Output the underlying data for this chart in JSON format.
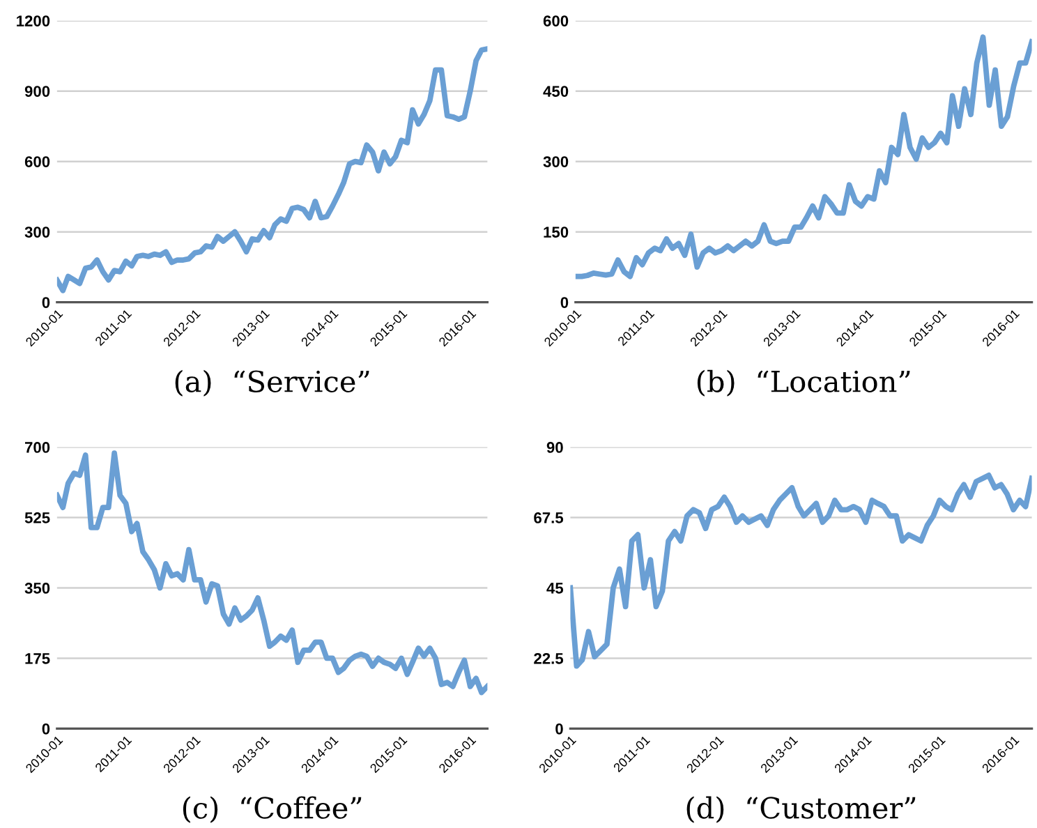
{
  "chart_data": [
    {
      "type": "line",
      "title": "(a)  “Service”",
      "color": "#6a9fd4",
      "grid": "y",
      "marker": "none",
      "line_style": "solid",
      "x": [
        "2010-01",
        "2010-02",
        "2010-03",
        "2010-04",
        "2010-05",
        "2010-06",
        "2010-07",
        "2010-08",
        "2010-09",
        "2010-10",
        "2010-11",
        "2010-12",
        "2011-01",
        "2011-02",
        "2011-03",
        "2011-04",
        "2011-05",
        "2011-06",
        "2011-07",
        "2011-08",
        "2011-09",
        "2011-10",
        "2011-11",
        "2011-12",
        "2012-01",
        "2012-02",
        "2012-03",
        "2012-04",
        "2012-05",
        "2012-06",
        "2012-07",
        "2012-08",
        "2012-09",
        "2012-10",
        "2012-11",
        "2012-12",
        "2013-01",
        "2013-02",
        "2013-03",
        "2013-04",
        "2013-05",
        "2013-06",
        "2013-07",
        "2013-08",
        "2013-09",
        "2013-10",
        "2013-11",
        "2013-12",
        "2014-01",
        "2014-02",
        "2014-03",
        "2014-04",
        "2014-05",
        "2014-06",
        "2014-07",
        "2014-08",
        "2014-09",
        "2014-10",
        "2014-11",
        "2014-12",
        "2015-01",
        "2015-02",
        "2015-03",
        "2015-04",
        "2015-05",
        "2015-06",
        "2015-07",
        "2015-08",
        "2015-09",
        "2015-10",
        "2015-11",
        "2015-12",
        "2016-01",
        "2016-02",
        "2016-03",
        "2016-04"
      ],
      "values": [
        94,
        50,
        110,
        95,
        80,
        145,
        150,
        180,
        130,
        95,
        135,
        130,
        175,
        155,
        195,
        200,
        195,
        205,
        200,
        215,
        170,
        180,
        180,
        185,
        210,
        215,
        240,
        235,
        280,
        260,
        280,
        300,
        260,
        215,
        270,
        265,
        305,
        275,
        330,
        355,
        345,
        400,
        405,
        395,
        360,
        430,
        360,
        365,
        410,
        460,
        510,
        590,
        600,
        595,
        670,
        640,
        560,
        640,
        590,
        620,
        690,
        680,
        820,
        760,
        800,
        860,
        990,
        990,
        795,
        790,
        780,
        790,
        900,
        1030,
        1075,
        1080
      ],
      "ylim": [
        0,
        1200
      ],
      "yticks": [
        0,
        300,
        600,
        900,
        1200
      ],
      "xlim": [
        "2010-01",
        "2016-04"
      ],
      "xticks": [
        "2010-01",
        "2011-01",
        "2012-01",
        "2013-01",
        "2014-01",
        "2015-01",
        "2016-01"
      ]
    },
    {
      "type": "line",
      "title": "(b)  “Location”",
      "color": "#6a9fd4",
      "grid": "y",
      "marker": "none",
      "line_style": "solid",
      "x": [
        "2010-01",
        "2010-02",
        "2010-03",
        "2010-04",
        "2010-05",
        "2010-06",
        "2010-07",
        "2010-08",
        "2010-09",
        "2010-10",
        "2010-11",
        "2010-12",
        "2011-01",
        "2011-02",
        "2011-03",
        "2011-04",
        "2011-05",
        "2011-06",
        "2011-07",
        "2011-08",
        "2011-09",
        "2011-10",
        "2011-11",
        "2011-12",
        "2012-01",
        "2012-02",
        "2012-03",
        "2012-04",
        "2012-05",
        "2012-06",
        "2012-07",
        "2012-08",
        "2012-09",
        "2012-10",
        "2012-11",
        "2012-12",
        "2013-01",
        "2013-02",
        "2013-03",
        "2013-04",
        "2013-05",
        "2013-06",
        "2013-07",
        "2013-08",
        "2013-09",
        "2013-10",
        "2013-11",
        "2013-12",
        "2014-01",
        "2014-02",
        "2014-03",
        "2014-04",
        "2014-05",
        "2014-06",
        "2014-07",
        "2014-08",
        "2014-09",
        "2014-10",
        "2014-11",
        "2014-12",
        "2015-01",
        "2015-02",
        "2015-03",
        "2015-04",
        "2015-05",
        "2015-06",
        "2015-07",
        "2015-08",
        "2015-09",
        "2015-10",
        "2015-11",
        "2015-12",
        "2016-01",
        "2016-02",
        "2016-03",
        "2016-04"
      ],
      "values": [
        55,
        55,
        57,
        62,
        60,
        58,
        60,
        90,
        65,
        55,
        95,
        80,
        105,
        115,
        110,
        135,
        115,
        125,
        100,
        145,
        75,
        105,
        115,
        105,
        110,
        120,
        110,
        120,
        130,
        120,
        130,
        165,
        130,
        125,
        130,
        130,
        160,
        160,
        180,
        205,
        180,
        225,
        210,
        190,
        190,
        250,
        215,
        205,
        225,
        220,
        280,
        255,
        330,
        315,
        400,
        330,
        305,
        350,
        330,
        340,
        360,
        340,
        440,
        375,
        455,
        400,
        510,
        565,
        420,
        495,
        375,
        395,
        460,
        510,
        510,
        555
      ],
      "ylim": [
        0,
        600
      ],
      "yticks": [
        0,
        150,
        300,
        450,
        600
      ],
      "xlim": [
        "2010-01",
        "2016-04"
      ],
      "xticks": [
        "2010-01",
        "2011-01",
        "2012-01",
        "2013-01",
        "2014-01",
        "2015-01",
        "2016-01"
      ]
    },
    {
      "type": "line",
      "title": "(c)  “Coffee”",
      "color": "#6a9fd4",
      "grid": "y",
      "marker": "none",
      "line_style": "solid",
      "x": [
        "2010-01",
        "2010-02",
        "2010-03",
        "2010-04",
        "2010-05",
        "2010-06",
        "2010-07",
        "2010-08",
        "2010-09",
        "2010-10",
        "2010-11",
        "2010-12",
        "2011-01",
        "2011-02",
        "2011-03",
        "2011-04",
        "2011-05",
        "2011-06",
        "2011-07",
        "2011-08",
        "2011-09",
        "2011-10",
        "2011-11",
        "2011-12",
        "2012-01",
        "2012-02",
        "2012-03",
        "2012-04",
        "2012-05",
        "2012-06",
        "2012-07",
        "2012-08",
        "2012-09",
        "2012-10",
        "2012-11",
        "2012-12",
        "2013-01",
        "2013-02",
        "2013-03",
        "2013-04",
        "2013-05",
        "2013-06",
        "2013-07",
        "2013-08",
        "2013-09",
        "2013-10",
        "2013-11",
        "2013-12",
        "2014-01",
        "2014-02",
        "2014-03",
        "2014-04",
        "2014-05",
        "2014-06",
        "2014-07",
        "2014-08",
        "2014-09",
        "2014-10",
        "2014-11",
        "2014-12",
        "2015-01",
        "2015-02",
        "2015-03",
        "2015-04",
        "2015-05",
        "2015-06",
        "2015-07",
        "2015-08",
        "2015-09",
        "2015-10",
        "2015-11",
        "2015-12",
        "2016-01",
        "2016-02",
        "2016-03",
        "2016-04"
      ],
      "values": [
        580,
        550,
        610,
        635,
        630,
        680,
        500,
        500,
        550,
        550,
        685,
        580,
        560,
        490,
        510,
        440,
        420,
        395,
        350,
        410,
        380,
        385,
        370,
        445,
        370,
        370,
        315,
        360,
        355,
        285,
        260,
        300,
        270,
        280,
        295,
        325,
        270,
        205,
        215,
        230,
        220,
        245,
        165,
        195,
        195,
        215,
        215,
        175,
        175,
        140,
        150,
        170,
        180,
        185,
        180,
        155,
        175,
        165,
        160,
        150,
        175,
        135,
        165,
        200,
        180,
        200,
        175,
        110,
        115,
        105,
        140,
        170,
        105,
        125,
        90,
        105
      ],
      "ylim": [
        0,
        700
      ],
      "yticks": [
        0,
        175,
        350,
        525,
        700
      ],
      "xlim": [
        "2010-01",
        "2016-04"
      ],
      "xticks": [
        "2010-01",
        "2011-01",
        "2012-01",
        "2013-01",
        "2014-01",
        "2015-01",
        "2016-01"
      ]
    },
    {
      "type": "line",
      "title": "(d)  “Customer”",
      "color": "#6a9fd4",
      "grid": "y",
      "marker": "none",
      "line_style": "solid",
      "x": [
        "2010-01",
        "2010-02",
        "2010-03",
        "2010-04",
        "2010-05",
        "2010-06",
        "2010-07",
        "2010-08",
        "2010-09",
        "2010-10",
        "2010-11",
        "2010-12",
        "2011-01",
        "2011-02",
        "2011-03",
        "2011-04",
        "2011-05",
        "2011-06",
        "2011-07",
        "2011-08",
        "2011-09",
        "2011-10",
        "2011-11",
        "2011-12",
        "2012-01",
        "2012-02",
        "2012-03",
        "2012-04",
        "2012-05",
        "2012-06",
        "2012-07",
        "2012-08",
        "2012-09",
        "2012-10",
        "2012-11",
        "2012-12",
        "2013-01",
        "2013-02",
        "2013-03",
        "2013-04",
        "2013-05",
        "2013-06",
        "2013-07",
        "2013-08",
        "2013-09",
        "2013-10",
        "2013-11",
        "2013-12",
        "2014-01",
        "2014-02",
        "2014-03",
        "2014-04",
        "2014-05",
        "2014-06",
        "2014-07",
        "2014-08",
        "2014-09",
        "2014-10",
        "2014-11",
        "2014-12",
        "2015-01",
        "2015-02",
        "2015-03",
        "2015-04",
        "2015-05",
        "2015-06",
        "2015-07",
        "2015-08",
        "2015-09",
        "2015-10",
        "2015-11",
        "2015-12",
        "2016-01",
        "2016-02",
        "2016-03",
        "2016-04"
      ],
      "values": [
        45,
        20,
        22,
        31,
        23,
        25,
        27,
        45,
        51,
        39,
        60,
        62,
        45,
        54,
        39,
        44,
        60,
        63,
        60,
        68,
        70,
        69,
        64,
        70,
        71,
        74,
        71,
        66,
        68,
        66,
        67,
        68,
        65,
        70,
        73,
        75,
        77,
        71,
        68,
        70,
        72,
        66,
        68,
        73,
        70,
        70,
        71,
        70,
        66,
        73,
        72,
        71,
        68,
        68,
        60,
        62,
        61,
        60,
        65,
        68,
        73,
        71,
        70,
        75,
        78,
        74,
        79,
        80,
        81,
        77,
        78,
        75,
        70,
        73,
        71,
        80
      ],
      "ylim": [
        0,
        90
      ],
      "yticks": [
        0,
        22.5,
        45,
        67.5,
        90
      ],
      "xlim": [
        "2010-01",
        "2016-04"
      ],
      "xticks": [
        "2010-01",
        "2011-01",
        "2012-01",
        "2013-01",
        "2014-01",
        "2015-01",
        "2016-01"
      ]
    }
  ]
}
